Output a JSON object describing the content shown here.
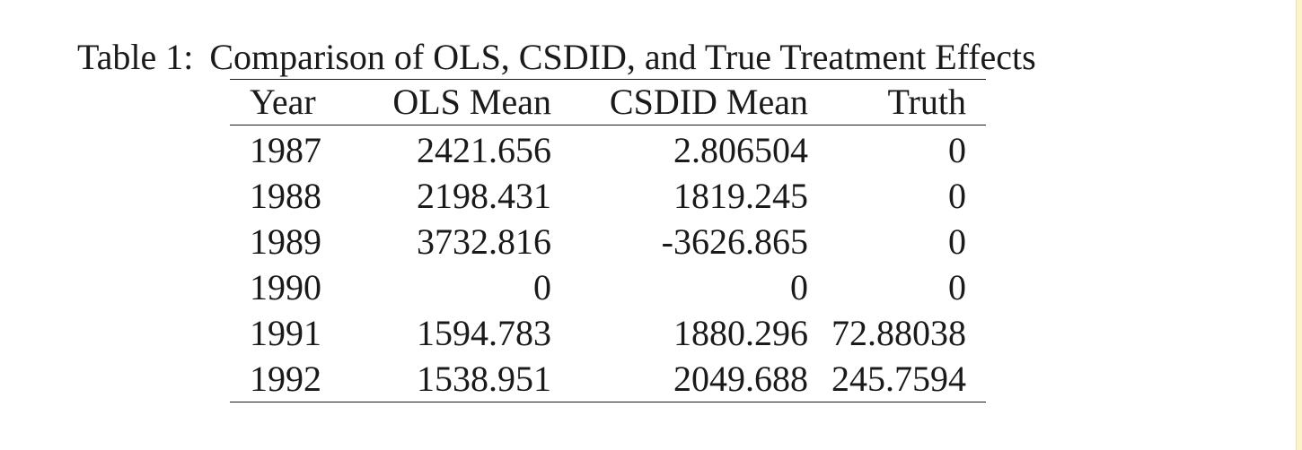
{
  "caption": {
    "label": "Table 1:",
    "text": "Comparison of OLS, CSDID, and True Treatment Effects"
  },
  "table": {
    "headers": [
      "Year",
      "OLS Mean",
      "CSDID Mean",
      "Truth"
    ],
    "rows": [
      [
        "1987",
        "2421.656",
        "2.806504",
        "0"
      ],
      [
        "1988",
        "2198.431",
        "1819.245",
        "0"
      ],
      [
        "1989",
        "3732.816",
        "-3626.865",
        "0"
      ],
      [
        "1990",
        "0",
        "0",
        "0"
      ],
      [
        "1991",
        "1594.783",
        "1880.296",
        "72.88038"
      ],
      [
        "1992",
        "1538.951",
        "2049.688",
        "245.7594"
      ]
    ]
  },
  "chart_data": {
    "type": "table",
    "title": "Comparison of OLS, CSDID, and True Treatment Effects",
    "columns": [
      "Year",
      "OLS Mean",
      "CSDID Mean",
      "Truth"
    ],
    "rows": [
      [
        1987,
        2421.656,
        2.806504,
        0
      ],
      [
        1988,
        2198.431,
        1819.245,
        0
      ],
      [
        1989,
        3732.816,
        -3626.865,
        0
      ],
      [
        1990,
        0,
        0,
        0
      ],
      [
        1991,
        1594.783,
        1880.296,
        72.88038
      ],
      [
        1992,
        1538.951,
        2049.688,
        245.7594
      ]
    ]
  }
}
